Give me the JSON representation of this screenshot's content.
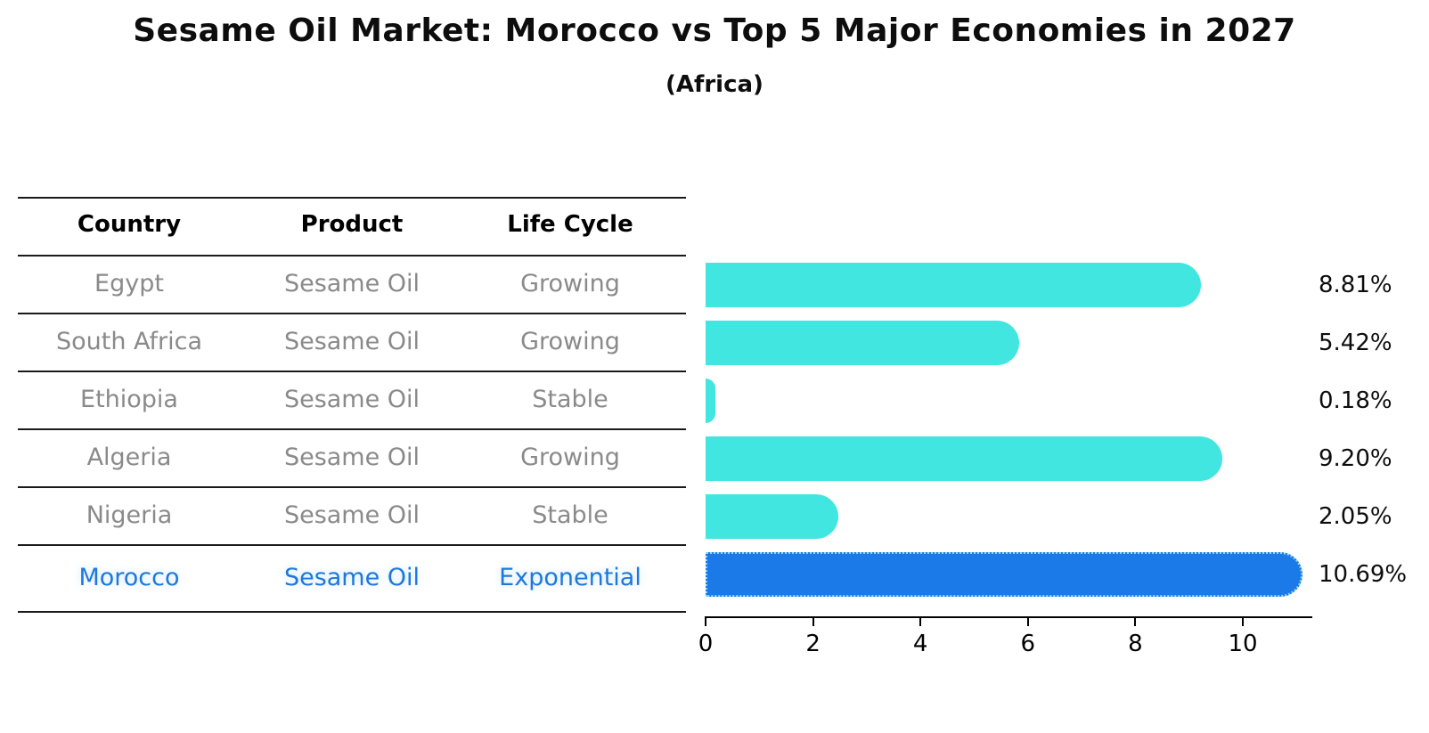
{
  "chart_data": {
    "type": "bar",
    "orientation": "horizontal",
    "title": "Sesame Oil Market: Morocco vs Top 5 Major Economies in 2027",
    "subtitle": "(Africa)",
    "categories": [
      "Egypt",
      "South Africa",
      "Ethiopia",
      "Algeria",
      "Nigeria",
      "Morocco"
    ],
    "values": [
      8.81,
      5.42,
      0.18,
      9.2,
      2.05,
      10.69
    ],
    "value_labels": [
      "8.81%",
      "5.42%",
      "0.18%",
      "9.20%",
      "2.05%",
      "10.69%"
    ],
    "xticks": [
      0,
      2,
      4,
      6,
      8,
      10
    ],
    "xlim": [
      0,
      11.3
    ],
    "grid": false,
    "legend": "none",
    "bar_color": "#41E6E0",
    "highlight_color": "#1B79E8",
    "highlight_border": "#8FD4F4",
    "highlight_index": 5
  },
  "table": {
    "headers": [
      "Country",
      "Product",
      "Life Cycle"
    ],
    "rows": [
      {
        "country": "Egypt",
        "product": "Sesame Oil",
        "life_cycle": "Growing",
        "highlight": false
      },
      {
        "country": "South Africa",
        "product": "Sesame Oil",
        "life_cycle": "Growing",
        "highlight": false
      },
      {
        "country": "Ethiopia",
        "product": "Sesame Oil",
        "life_cycle": "Stable",
        "highlight": false
      },
      {
        "country": "Algeria",
        "product": "Sesame Oil",
        "life_cycle": "Growing",
        "highlight": false
      },
      {
        "country": "Nigeria",
        "product": "Sesame Oil",
        "life_cycle": "Stable",
        "highlight": false
      },
      {
        "country": "Morocco",
        "product": "Sesame Oil",
        "life_cycle": "Exponential",
        "highlight": true
      }
    ]
  },
  "colors": {
    "text_default": "#0D0D0D",
    "text_muted": "#8A8A8A",
    "highlight_text": "#1E78DC",
    "bar": "#41E6E0",
    "highlight_bar": "#1B79E8"
  }
}
